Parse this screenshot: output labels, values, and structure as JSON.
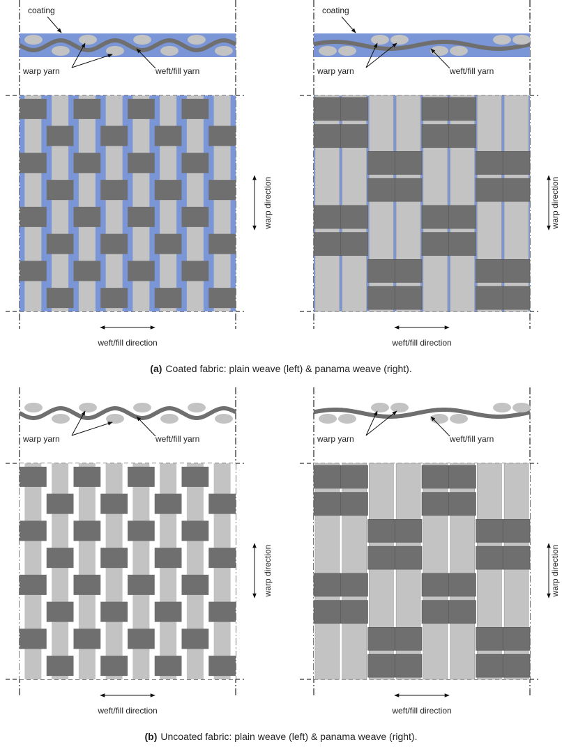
{
  "figures": [
    {
      "panels": [
        {
          "coating": "coating",
          "warp_yarn": "warp yarn",
          "weft_yarn": "weft/fill yarn",
          "warp_direction": "warp direction",
          "weft_direction": "weft/fill direction"
        },
        {
          "coating": "coating",
          "warp_yarn": "warp yarn",
          "weft_yarn": "weft/fill yarn",
          "warp_direction": "warp direction",
          "weft_direction": "weft/fill direction"
        }
      ],
      "caption": {
        "label": "(a)",
        "text": "Coated fabric: plain weave (left) & panama weave (right)."
      }
    },
    {
      "panels": [
        {
          "warp_yarn": "warp yarn",
          "weft_yarn": "weft/fill yarn",
          "warp_direction": "warp direction",
          "weft_direction": "weft/fill direction"
        },
        {
          "warp_yarn": "warp yarn",
          "weft_yarn": "weft/fill yarn",
          "warp_direction": "warp direction",
          "weft_direction": "weft/fill direction"
        }
      ],
      "caption": {
        "label": "(b)",
        "text": "Uncoated fabric: plain weave (left) & panama weave (right)."
      }
    }
  ]
}
